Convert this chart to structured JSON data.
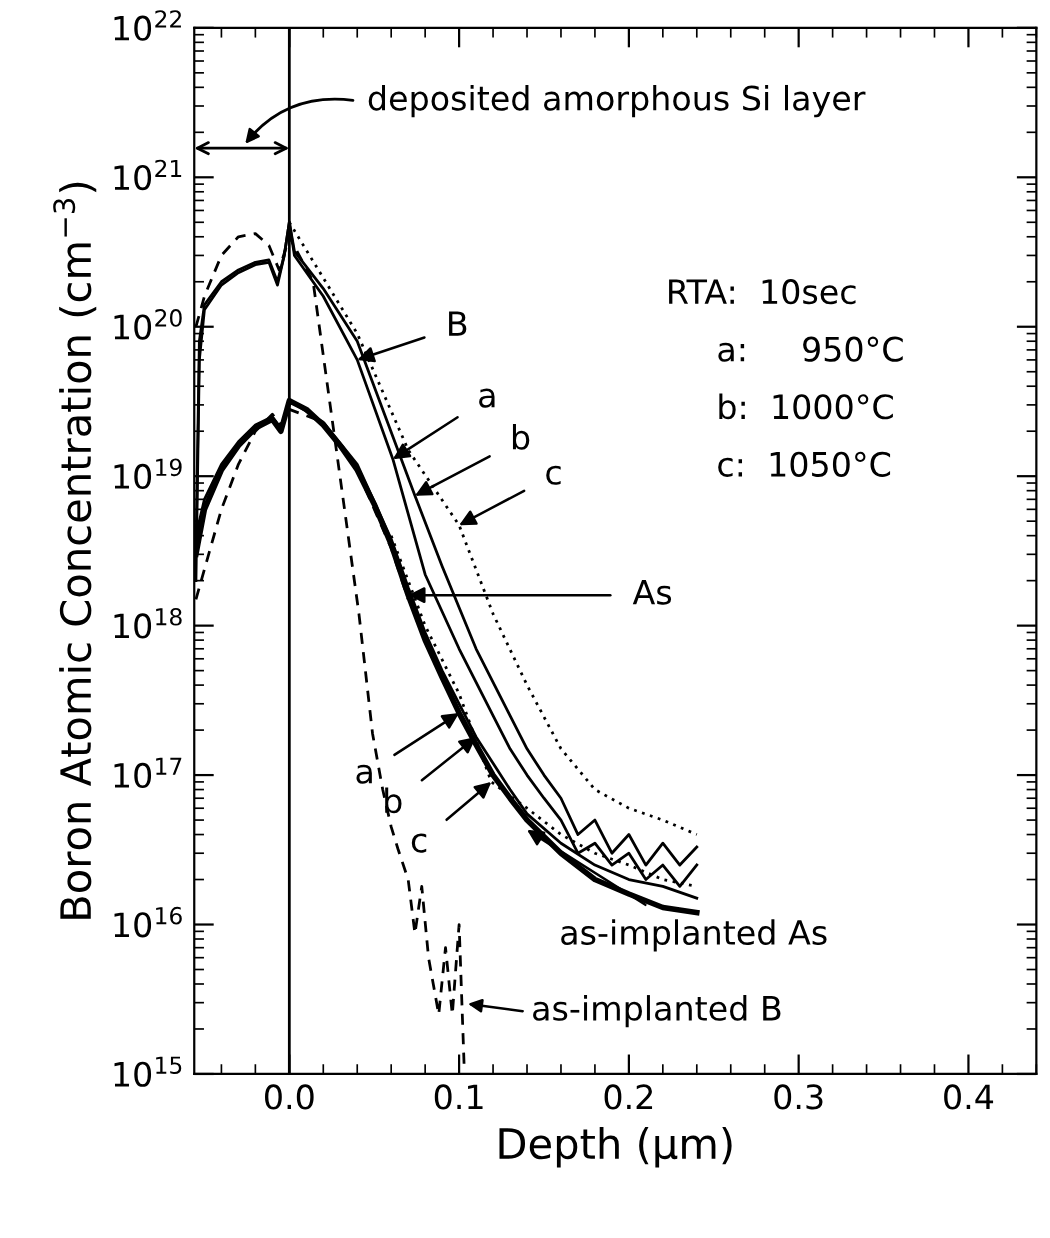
{
  "chart_data": {
    "type": "line",
    "xlabel": "Depth (μm)",
    "ylabel": "Boron Atomic Concentration (cm$^{−3}$)",
    "xlim": [
      -0.056,
      0.44
    ],
    "xticks": [
      {
        "value": 0,
        "label": "0.0"
      },
      0.1,
      0.2,
      0.3,
      0.4
    ],
    "ylim": [
      1000000000000000.0,
      1e+22
    ],
    "yticks": [
      {
        "value": 1000000000000000.0,
        "label": "10$^{15}$"
      },
      {
        "value": 1e+16,
        "label": "10$^{16}$"
      },
      {
        "value": 1e+17,
        "label": "10$^{17}$"
      },
      {
        "value": 1e+18,
        "label": "10$^{18}$"
      },
      {
        "value": 1e+19,
        "label": "10$^{19}$"
      },
      {
        "value": 1e+20,
        "label": "10$^{20}$"
      },
      {
        "value": 1e+21,
        "label": "10$^{21}$"
      },
      {
        "value": 1e+22,
        "label": "10$^{22}$"
      }
    ],
    "log": "y",
    "grid": false,
    "legend": false,
    "marker": "none",
    "ref_lines": [
      {
        "axis": "x",
        "value": 0,
        "color": "#000000",
        "line_style": "solid"
      }
    ],
    "series": [
      {
        "color": "#000000",
        "line_style": "solid",
        "x": [
          -0.055,
          -0.053,
          -0.05,
          -0.04,
          -0.03,
          -0.02,
          -0.012,
          -0.007,
          -0.003,
          0,
          0.003,
          0.02,
          0.04,
          0.061,
          0.08,
          0.1,
          0.12,
          0.13,
          0.14,
          0.15,
          0.16,
          0.17,
          0.18,
          0.19,
          0.2,
          0.21,
          0.22,
          0.23,
          0.24
        ],
        "values": [
          3e+18,
          8e+19,
          1.4e+20,
          2e+20,
          2.4e+20,
          2.7e+20,
          2.8e+20,
          2e+20,
          3e+20,
          5e+20,
          3e+20,
          1.6e+20,
          6e+19,
          1.3e+19,
          2.2e+18,
          7e+17,
          2.5e+17,
          1.5e+17,
          1e+17,
          7e+16,
          5e+16,
          3e+16,
          3.5e+16,
          2.5e+16,
          3e+16,
          2e+16,
          2.5e+16,
          1.8e+16,
          2.5e+16
        ]
      },
      {
        "color": "#000000",
        "line_style": "solid",
        "x": [
          -0.055,
          -0.053,
          -0.05,
          -0.04,
          -0.03,
          -0.02,
          -0.012,
          -0.007,
          -0.003,
          0,
          0.003,
          0.02,
          0.04,
          0.074,
          0.09,
          0.11,
          0.13,
          0.14,
          0.15,
          0.16,
          0.17,
          0.18,
          0.19,
          0.2,
          0.21,
          0.22,
          0.23,
          0.24
        ],
        "values": [
          2e+18,
          6e+19,
          1.3e+20,
          1.9e+20,
          2.3e+20,
          2.6e+20,
          2.7e+20,
          1.9e+20,
          3e+20,
          5e+20,
          3.2e+20,
          1.8e+20,
          8e+19,
          7.4e+18,
          2.5e+18,
          7e+17,
          2.5e+17,
          1.5e+17,
          1e+17,
          7e+16,
          4e+16,
          5e+16,
          3e+16,
          4e+16,
          2.5e+16,
          3.5e+16,
          2.5e+16,
          3.3e+16
        ]
      },
      {
        "color": "#000000",
        "line_style": "dotted",
        "x": [
          0,
          0.04,
          0.07,
          0.1,
          0.12,
          0.14,
          0.16,
          0.18,
          0.2,
          0.22,
          0.24
        ],
        "values": [
          5e+20,
          9e+19,
          1.5e+19,
          4.7e+18,
          1.2e+18,
          4e+17,
          1.5e+17,
          8e+16,
          6e+16,
          5e+16,
          4e+16
        ]
      },
      {
        "color": "#000000",
        "line_style": "dashed",
        "x": [
          -0.055,
          -0.05,
          -0.04,
          -0.03,
          -0.02,
          -0.012,
          -0.006,
          0,
          0.014,
          0.025,
          0.041,
          0.049,
          0.055,
          0.06,
          0.064,
          0.07,
          0.074,
          0.078,
          0.082,
          0.088,
          0.092,
          0.096,
          0.1,
          0.103
        ],
        "values": [
          1e+20,
          1.6e+20,
          3e+20,
          4e+20,
          4.2e+20,
          3.5e+20,
          2.4e+20,
          4e+20,
          2e+20,
          2.5e+19,
          1.2e+18,
          1.9e+17,
          8e+16,
          4.5e+16,
          3.2e+16,
          2e+16,
          8700000000000000.0,
          1.8e+16,
          6000000000000000.0,
          2500000000000000.0,
          7000000000000000.0,
          2500000000000000.0,
          1e+16,
          1100000000000000.0
        ]
      },
      {
        "color": "#000000",
        "line_style": "solid",
        "x": [
          -0.055,
          -0.05,
          -0.04,
          -0.03,
          -0.02,
          -0.01,
          -0.005,
          0,
          0.01,
          0.02,
          0.03,
          0.04,
          0.05,
          0.06,
          0.07,
          0.08,
          0.09,
          0.1,
          0.11,
          0.12,
          0.13,
          0.14,
          0.16,
          0.18,
          0.2,
          0.22,
          0.24
        ],
        "values": [
          3e+18,
          6e+18,
          1.1e+19,
          1.6e+19,
          2.1e+19,
          2.4e+19,
          2e+19,
          3.2e+19,
          2.8e+19,
          2.2e+19,
          1.6e+19,
          1.1e+19,
          6.5e+18,
          3.5e+18,
          1.6e+18,
          8e+17,
          4.5e+17,
          2.6e+17,
          1.6e+17,
          1e+17,
          7e+16,
          5e+16,
          3e+16,
          2e+16,
          1.6e+16,
          1.3e+16,
          1.2e+16
        ]
      },
      {
        "color": "#000000",
        "line_style": "solid",
        "x": [
          -0.055,
          -0.05,
          -0.04,
          -0.03,
          -0.02,
          -0.01,
          -0.005,
          0,
          0.02,
          0.04,
          0.06,
          0.07,
          0.08,
          0.09,
          0.1,
          0.11,
          0.12,
          0.13,
          0.14,
          0.16,
          0.18,
          0.2,
          0.22,
          0.24
        ],
        "values": [
          4e+18,
          7e+18,
          1.2e+19,
          1.7e+19,
          2.2e+19,
          2.5e+19,
          2.1e+19,
          3.2e+19,
          2.3e+19,
          1.2e+19,
          3.8e+18,
          1.8e+18,
          9e+17,
          5e+17,
          3e+17,
          1.8e+17,
          1.2e+17,
          8e+16,
          5.5e+16,
          3.5e+16,
          2.5e+16,
          2e+16,
          1.8e+16,
          1.5e+16
        ]
      },
      {
        "color": "#000000",
        "line_style": "dotted",
        "x": [
          0.06,
          0.08,
          0.1,
          0.119,
          0.14,
          0.16,
          0.18,
          0.2,
          0.22,
          0.24
        ],
        "values": [
          4e+18,
          1e+18,
          3.5e+17,
          9e+16,
          6e+16,
          4e+16,
          3e+16,
          2.5e+16,
          2e+16,
          1.8e+16
        ]
      },
      {
        "color": "#000000",
        "line_style": "dashed",
        "x": [
          -0.055,
          -0.04,
          -0.03,
          -0.02,
          -0.01,
          -0.005,
          0,
          0.02,
          0.04,
          0.06,
          0.07
        ],
        "values": [
          1.5e+18,
          6e+18,
          1.2e+19,
          2e+19,
          2.6e+19,
          2.2e+19,
          2.8e+19,
          2.3e+19,
          1.1e+19,
          3.3e+18,
          1.5e+18
        ]
      }
    ],
    "annotations": [
      {
        "text": "B",
        "x": 0.04,
        "y": 6e+19
      },
      {
        "text": "a",
        "x": 0.061,
        "y": 1.3e+19
      },
      {
        "text": "b",
        "x": 0.074,
        "y": 7.4e+18
      },
      {
        "text": "c",
        "x": 0.1,
        "y": 4.7e+18
      },
      {
        "text": "As",
        "x": 0.07,
        "y": 1.6e+18
      },
      {
        "text": "a",
        "x": 0.1,
        "y": 2.6e+17
      },
      {
        "text": "b",
        "x": 0.11,
        "y": 1.8e+17
      },
      {
        "text": "c",
        "x": 0.119,
        "y": 9e+16
      },
      {
        "text": "as-implanted As",
        "x": 0.14,
        "y": 4.3e+16
      },
      "deposited amorphous Si layer",
      "RTA:  10sec",
      "a:     950°C",
      "b:  1000°C",
      "c:  1050°C",
      "as-implanted B"
    ]
  }
}
